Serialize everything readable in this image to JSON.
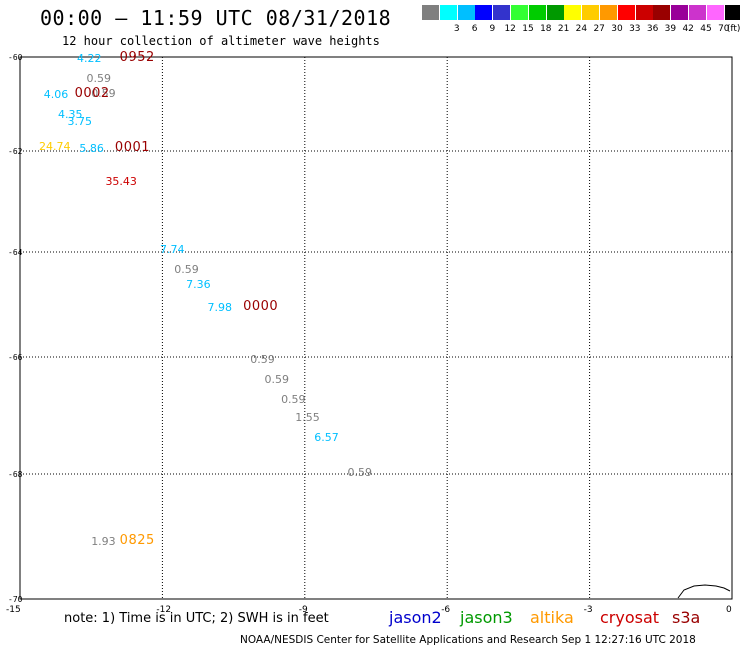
{
  "title": "00:00 – 11:59 UTC 08/31/2018",
  "subtitle": "12 hour collection of altimeter wave heights",
  "legend": {
    "unit": "(ft)",
    "entries": [
      {
        "label": "",
        "color": "#7f7f7f"
      },
      {
        "label": "3",
        "color": "#00ffff"
      },
      {
        "label": "6",
        "color": "#00bfff"
      },
      {
        "label": "9",
        "color": "#0000ff"
      },
      {
        "label": "12",
        "color": "#3333cc"
      },
      {
        "label": "15",
        "color": "#33ff33"
      },
      {
        "label": "18",
        "color": "#00cc00"
      },
      {
        "label": "21",
        "color": "#009900"
      },
      {
        "label": "24",
        "color": "#ffff00"
      },
      {
        "label": "27",
        "color": "#ffcc00"
      },
      {
        "label": "30",
        "color": "#ff9900"
      },
      {
        "label": "33",
        "color": "#ff0000"
      },
      {
        "label": "36",
        "color": "#cc0000"
      },
      {
        "label": "39",
        "color": "#990000"
      },
      {
        "label": "42",
        "color": "#990099"
      },
      {
        "label": "45",
        "color": "#cc33cc"
      },
      {
        "label": "70",
        "color": "#ff66ff"
      },
      {
        "label": "",
        "color": "#000000"
      }
    ]
  },
  "axes": {
    "y_ticks": [
      {
        "value": -60,
        "label": "-60"
      },
      {
        "value": -62,
        "label": "-62"
      },
      {
        "value": -64,
        "label": "-64"
      },
      {
        "value": -66,
        "label": "-66"
      },
      {
        "value": -68,
        "label": "-68"
      },
      {
        "value": -70,
        "label": "-70"
      }
    ],
    "x_ticks": [
      {
        "value": -15,
        "label": "-15"
      },
      {
        "value": -12,
        "label": "-12"
      },
      {
        "value": -9,
        "label": "-9"
      },
      {
        "value": -6,
        "label": "-6"
      },
      {
        "value": -3,
        "label": "-3"
      },
      {
        "value": 0,
        "label": "0"
      }
    ],
    "lon_range": [
      -15,
      0
    ],
    "lat_range": [
      -70,
      -60
    ]
  },
  "wave_heights": [
    {
      "text": "4.22",
      "lon": -13.8,
      "lat": -60.02,
      "color": "#00bfff"
    },
    {
      "text": "0.59",
      "lon": -13.6,
      "lat": -60.45,
      "color": "#7f7f7f"
    },
    {
      "text": "0.59",
      "lon": -13.5,
      "lat": -60.76,
      "color": "#7f7f7f"
    },
    {
      "text": "4.06",
      "lon": -14.5,
      "lat": -60.78,
      "color": "#00bfff"
    },
    {
      "text": "4.35",
      "lon": -14.2,
      "lat": -61.21,
      "color": "#00bfff"
    },
    {
      "text": "3.75",
      "lon": -14.0,
      "lat": -61.36,
      "color": "#00bfff"
    },
    {
      "text": "24.74",
      "lon": -14.6,
      "lat": -61.89,
      "color": "#ffcc00"
    },
    {
      "text": "5.86",
      "lon": -13.75,
      "lat": -61.93,
      "color": "#00bfff"
    },
    {
      "text": "35.43",
      "lon": -13.2,
      "lat": -62.6,
      "color": "#cc0000"
    },
    {
      "text": "7.74",
      "lon": -12.05,
      "lat": -63.95,
      "color": "#00bfff"
    },
    {
      "text": "0.59",
      "lon": -11.75,
      "lat": -64.33,
      "color": "#7f7f7f"
    },
    {
      "text": "7.36",
      "lon": -11.5,
      "lat": -64.61,
      "color": "#00bfff"
    },
    {
      "text": "7.98",
      "lon": -11.05,
      "lat": -65.04,
      "color": "#00bfff"
    },
    {
      "text": "0.59",
      "lon": -10.15,
      "lat": -66.03,
      "color": "#7f7f7f"
    },
    {
      "text": "0.59",
      "lon": -9.85,
      "lat": -66.37,
      "color": "#7f7f7f"
    },
    {
      "text": "0.59",
      "lon": -9.5,
      "lat": -66.72,
      "color": "#7f7f7f"
    },
    {
      "text": "1.55",
      "lon": -9.2,
      "lat": -67.03,
      "color": "#7f7f7f"
    },
    {
      "text": "6.57",
      "lon": -8.8,
      "lat": -67.36,
      "color": "#00bfff"
    },
    {
      "text": "0.59",
      "lon": -8.1,
      "lat": -67.97,
      "color": "#7f7f7f"
    },
    {
      "text": "1.93",
      "lon": -13.5,
      "lat": -69.07,
      "color": "#7f7f7f"
    }
  ],
  "pass_times": [
    {
      "text": "0952",
      "lon": -12.9,
      "lat": -60.02,
      "color": "#990000"
    },
    {
      "text": "0002",
      "lon": -13.85,
      "lat": -60.78,
      "color": "#990000"
    },
    {
      "text": "0001",
      "lon": -13.0,
      "lat": -61.93,
      "color": "#990000"
    },
    {
      "text": "0000",
      "lon": -10.3,
      "lat": -65.04,
      "color": "#990000"
    },
    {
      "text": "0825",
      "lon": -12.9,
      "lat": -69.07,
      "color": "#ff9900"
    }
  ],
  "note": "note: 1) Time is in UTC; 2) SWH is in feet",
  "satellites": [
    {
      "name": "jason2",
      "color": "#0000cc"
    },
    {
      "name": "jason3",
      "color": "#009900"
    },
    {
      "name": "altika",
      "color": "#ff9900"
    },
    {
      "name": "cryosat",
      "color": "#cc0000"
    },
    {
      "name": "s3a",
      "color": "#990000"
    }
  ],
  "credit": "NOAA/NESDIS Center for Satellite Applications and Research   Sep  1 12:27:16 UTC 2018"
}
